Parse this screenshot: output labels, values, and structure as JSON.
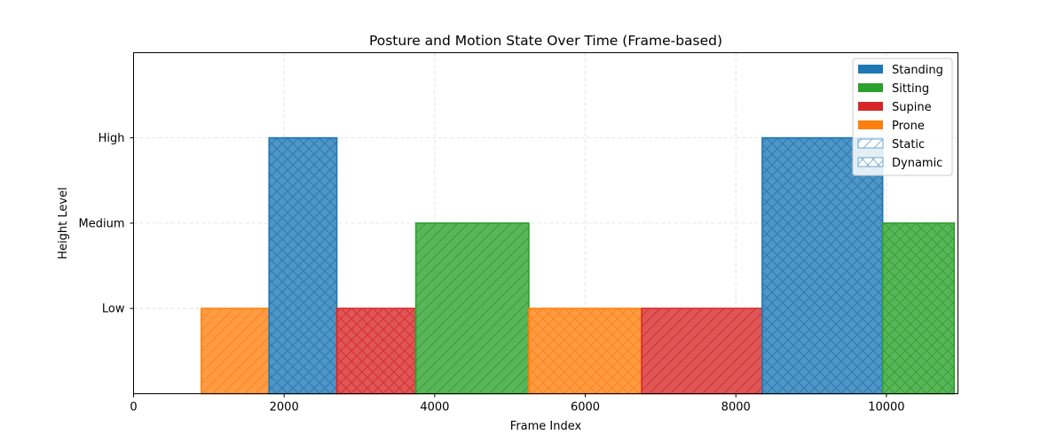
{
  "chart_data": {
    "type": "bar",
    "title": "Posture and Motion State Over Time (Frame-based)",
    "xlabel": "Frame Index",
    "ylabel": "Height Level",
    "xlim": [
      0,
      10950
    ],
    "ylim": [
      0,
      3
    ],
    "x_ticks": [
      0,
      2000,
      4000,
      6000,
      8000,
      10000
    ],
    "y_ticks": [
      {
        "value": 1,
        "label": "Low"
      },
      {
        "value": 2,
        "label": "Medium"
      },
      {
        "value": 3,
        "label": "High"
      }
    ],
    "grid": true,
    "legend_position": "top-right",
    "postures": [
      {
        "name": "Standing",
        "color": "#1f77b4"
      },
      {
        "name": "Sitting",
        "color": "#2ca02c"
      },
      {
        "name": "Supine",
        "color": "#d62728"
      },
      {
        "name": "Prone",
        "color": "#ff7f0e"
      }
    ],
    "motions": [
      {
        "name": "Static",
        "hatch": "diagonal"
      },
      {
        "name": "Dynamic",
        "hatch": "cross"
      }
    ],
    "segments": [
      {
        "start": 900,
        "end": 1800,
        "posture": "Prone",
        "motion": "Static",
        "height": 1
      },
      {
        "start": 1800,
        "end": 2700,
        "posture": "Standing",
        "motion": "Dynamic",
        "height": 3
      },
      {
        "start": 2700,
        "end": 3750,
        "posture": "Supine",
        "motion": "Dynamic",
        "height": 1
      },
      {
        "start": 3750,
        "end": 5250,
        "posture": "Sitting",
        "motion": "Static",
        "height": 2
      },
      {
        "start": 5250,
        "end": 6750,
        "posture": "Prone",
        "motion": "Dynamic",
        "height": 1
      },
      {
        "start": 6750,
        "end": 8350,
        "posture": "Supine",
        "motion": "Static",
        "height": 1
      },
      {
        "start": 8350,
        "end": 9950,
        "posture": "Standing",
        "motion": "Dynamic",
        "height": 3
      },
      {
        "start": 9950,
        "end": 10900,
        "posture": "Sitting",
        "motion": "Dynamic",
        "height": 2
      }
    ]
  }
}
